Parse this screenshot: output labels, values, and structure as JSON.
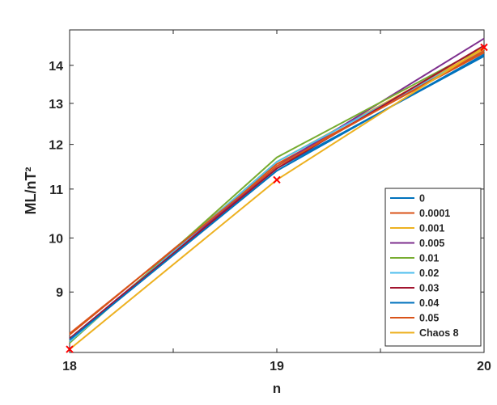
{
  "chart_data": {
    "type": "line",
    "xlabel": "n",
    "ylabel": "ML/nT²",
    "x": [
      18,
      19,
      20
    ],
    "xlim": [
      18,
      20
    ],
    "xticks": [
      18,
      19,
      20
    ],
    "xminorticks": [
      18.5,
      19.5
    ],
    "ylim": [
      8,
      15
    ],
    "yticks": [
      9,
      10,
      11,
      12,
      13,
      14
    ],
    "yscale": "log",
    "legend": "lower right",
    "series": [
      {
        "name": "0",
        "color": "#0072bd",
        "values": [
          8.2,
          11.45,
          14.25
        ]
      },
      {
        "name": "0.0001",
        "color": "#d95319",
        "values": [
          8.28,
          11.55,
          14.35
        ]
      },
      {
        "name": "0.001",
        "color": "#edb120",
        "values": [
          8.18,
          11.6,
          14.45
        ]
      },
      {
        "name": "0.005",
        "color": "#7e2f8e",
        "values": [
          8.22,
          11.5,
          14.75
        ]
      },
      {
        "name": "0.01",
        "color": "#77ac30",
        "values": [
          8.15,
          11.7,
          14.5
        ]
      },
      {
        "name": "0.02",
        "color": "#4dbeee",
        "values": [
          8.17,
          11.6,
          14.4
        ]
      },
      {
        "name": "0.03",
        "color": "#a2142f",
        "values": [
          8.22,
          11.45,
          14.55
        ]
      },
      {
        "name": "0.04",
        "color": "#0072bd",
        "values": [
          8.2,
          11.4,
          14.3
        ]
      },
      {
        "name": "0.05",
        "color": "#d95319",
        "values": [
          8.3,
          11.5,
          14.4
        ]
      },
      {
        "name": "Chaos 8",
        "color": "#edb120",
        "values": [
          8.05,
          11.2,
          14.5
        ]
      }
    ],
    "markers": {
      "color": "#ff0000",
      "x": [
        18,
        19,
        20
      ],
      "values": [
        8.05,
        11.2,
        14.5
      ]
    }
  }
}
